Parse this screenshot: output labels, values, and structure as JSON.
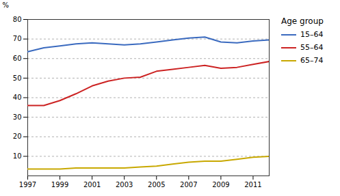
{
  "chart_data": {
    "type": "line",
    "x": [
      1997,
      1998,
      1999,
      2000,
      2001,
      2002,
      2003,
      2004,
      2005,
      2006,
      2007,
      2008,
      2009,
      2010,
      2011,
      2012
    ],
    "series": [
      {
        "name": "15–64",
        "color": "#3a6abf",
        "values": [
          63.5,
          65.5,
          66.5,
          67.5,
          68.0,
          67.5,
          67.0,
          67.5,
          68.5,
          69.5,
          70.5,
          71.0,
          68.5,
          68.0,
          69.0,
          69.5
        ]
      },
      {
        "name": "55–64",
        "color": "#cc2222",
        "values": [
          36.0,
          36.0,
          38.5,
          42.0,
          46.0,
          48.5,
          50.0,
          50.5,
          53.5,
          54.5,
          55.5,
          56.5,
          55.0,
          55.5,
          57.0,
          58.5
        ]
      },
      {
        "name": "65–74",
        "color": "#c8a800",
        "values": [
          3.5,
          3.5,
          3.5,
          4.0,
          4.0,
          4.0,
          4.0,
          4.5,
          5.0,
          6.0,
          7.0,
          7.5,
          7.5,
          8.5,
          9.5,
          10.0
        ]
      }
    ],
    "ylabel": "%",
    "legend_title": "Age group",
    "legend": "right",
    "xlim": [
      1997,
      2012
    ],
    "xticks": [
      1997,
      1999,
      2001,
      2003,
      2005,
      2007,
      2009,
      2011
    ],
    "ylim": [
      0,
      80
    ],
    "yticks": [
      10,
      20,
      30,
      40,
      50,
      60,
      70,
      80
    ],
    "grid": true
  }
}
